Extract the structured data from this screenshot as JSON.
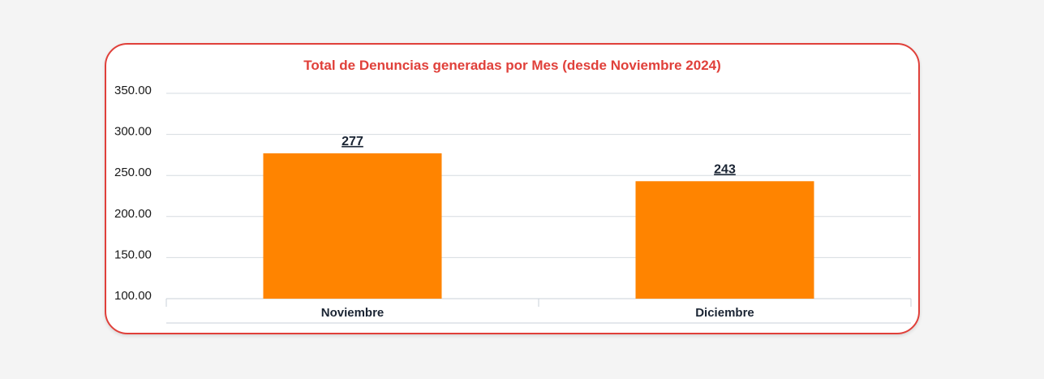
{
  "chart_data": {
    "type": "bar",
    "title": "Total de Denuncias generadas por Mes (desde Noviembre 2024)",
    "categories": [
      "Noviembre",
      "Diciembre"
    ],
    "values": [
      277,
      243
    ],
    "data_labels": [
      "277",
      "243"
    ],
    "y_ticks": [
      100,
      150,
      200,
      250,
      300,
      350
    ],
    "y_tick_labels": [
      "100.00",
      "150.00",
      "200.00",
      "250.00",
      "300.00",
      "350.00"
    ],
    "ylim": [
      100,
      350
    ],
    "grid": true,
    "bar_color": "#ff8400",
    "title_color": "#e0403a"
  }
}
